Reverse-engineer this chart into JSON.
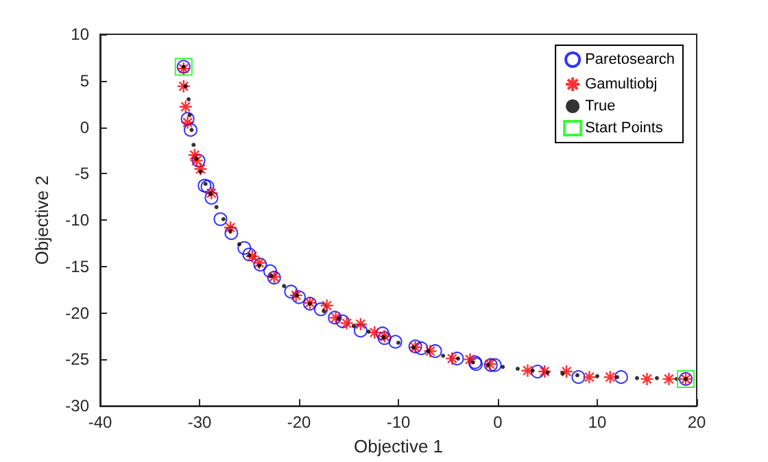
{
  "chart_data": {
    "type": "scatter",
    "xlabel": "Objective 1",
    "ylabel": "Objective 2",
    "xlim": [
      -40,
      20
    ],
    "ylim": [
      -30,
      10
    ],
    "xticks": [
      -40,
      -30,
      -20,
      -10,
      0,
      10,
      20
    ],
    "yticks": [
      -30,
      -25,
      -20,
      -15,
      -10,
      -5,
      0,
      5,
      10
    ],
    "grid": false,
    "legend": "top right",
    "series": [
      {
        "name": "Paretosearch",
        "color": "#0000ff",
        "marker": "circle",
        "x": [
          -31.6,
          -31.2,
          -30.9,
          -30.1,
          -29.5,
          -29.2,
          -28.8,
          -27.9,
          -26.8,
          -25.5,
          -25.0,
          -23.9,
          -22.9,
          -22.5,
          -20.8,
          -20.0,
          -18.9,
          -17.8,
          -16.4,
          -15.6,
          -13.8,
          -11.6,
          -11.4,
          -10.3,
          -8.3,
          -7.7,
          -6.3,
          -4.1,
          -2.3,
          -2.2,
          -0.7,
          -0.3,
          4.0,
          8.1,
          12.4,
          18.9
        ],
        "values": [
          6.5,
          0.9,
          -0.3,
          -3.6,
          -6.3,
          -6.4,
          -7.6,
          -9.9,
          -11.4,
          -13.0,
          -13.7,
          -14.8,
          -15.5,
          -16.2,
          -17.7,
          -18.3,
          -19.0,
          -19.6,
          -20.5,
          -20.9,
          -21.9,
          -22.2,
          -22.7,
          -23.1,
          -23.6,
          -23.8,
          -24.1,
          -24.9,
          -25.3,
          -25.5,
          -25.6,
          -25.6,
          -26.3,
          -26.9,
          -26.9,
          -27.1
        ]
      },
      {
        "name": "Gamultiobj",
        "color": "#ff0000",
        "marker": "cross",
        "x": [
          -31.6,
          -31.6,
          -31.4,
          -31.2,
          -30.5,
          -30.3,
          -29.9,
          -28.8,
          -26.9,
          -24.7,
          -24.0,
          -22.5,
          -20.3,
          -18.9,
          -17.2,
          -16.3,
          -15.2,
          -13.8,
          -12.4,
          -11.4,
          -8.3,
          -6.8,
          -4.6,
          -2.8,
          -0.8,
          3.0,
          4.7,
          6.9,
          9.2,
          11.3,
          15.0,
          17.2,
          18.9
        ],
        "values": [
          6.3,
          4.4,
          2.2,
          0.5,
          -3.0,
          -3.6,
          -4.5,
          -7.1,
          -10.8,
          -13.9,
          -14.6,
          -16.1,
          -18.1,
          -18.9,
          -19.2,
          -20.5,
          -21.1,
          -21.2,
          -22.1,
          -22.5,
          -23.7,
          -24.1,
          -24.9,
          -25.0,
          -25.5,
          -26.2,
          -26.3,
          -26.3,
          -26.9,
          -26.9,
          -27.1,
          -27.1,
          -27.1
        ]
      },
      {
        "name": "True",
        "color": "#000000",
        "marker": "circle",
        "x": [
          -31.6,
          -31.4,
          -31.1,
          -31.0,
          -30.8,
          -30.6,
          -30.3,
          -29.9,
          -29.4,
          -28.9,
          -28.3,
          -27.6,
          -26.9,
          -26.0,
          -25.0,
          -24.0,
          -22.8,
          -21.5,
          -20.2,
          -18.9,
          -17.5,
          -16.0,
          -14.5,
          -13.0,
          -11.5,
          -10.0,
          -8.5,
          -7.0,
          -5.5,
          -4.0,
          -2.5,
          -1.0,
          0.5,
          2.0,
          3.5,
          5.0,
          6.5,
          8.0,
          10.0,
          12.0,
          14.0,
          16.0,
          18.0,
          18.9
        ],
        "values": [
          6.5,
          4.4,
          3.0,
          1.3,
          -0.3,
          -1.9,
          -3.4,
          -4.8,
          -6.1,
          -7.2,
          -8.6,
          -9.9,
          -11.2,
          -12.6,
          -13.8,
          -14.9,
          -16.0,
          -17.1,
          -18.1,
          -19.0,
          -19.8,
          -20.6,
          -21.4,
          -22.0,
          -22.6,
          -23.2,
          -23.7,
          -24.1,
          -24.6,
          -24.9,
          -25.3,
          -25.6,
          -25.8,
          -26.0,
          -26.2,
          -26.4,
          -26.5,
          -26.7,
          -26.8,
          -26.9,
          -27.0,
          -27.0,
          -27.1,
          -27.1
        ]
      },
      {
        "name": "Start Points",
        "color": "#00ff00",
        "marker": "square",
        "x": [
          -31.6,
          18.9
        ],
        "values": [
          6.5,
          -27.1
        ]
      }
    ]
  }
}
